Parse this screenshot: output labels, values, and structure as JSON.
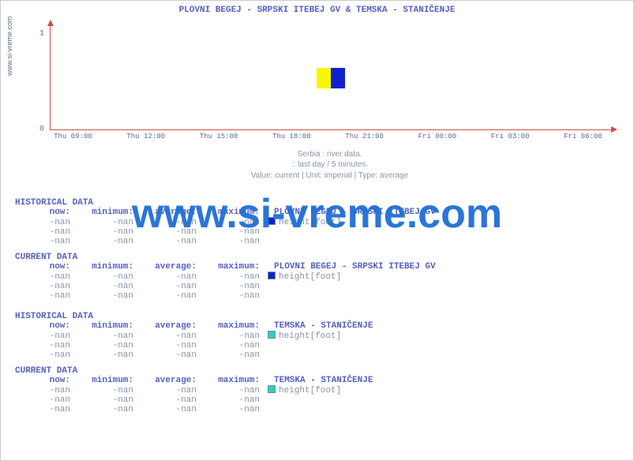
{
  "title": "PLOVNI BEGEJ -  SRPSKI ITEBEJ GV &  TEMSKA -  STANIČENJE",
  "side_link": "www.si-vreme.com",
  "watermark": {
    "text": "www.si-vreme.com",
    "color": "#1f6fd4",
    "fontsize": 52
  },
  "meta": {
    "line1": "Serbia : river data.",
    "line2": ":: last day / 5 minutes.",
    "line3": "Value: current | Unit: imperial | Type: average"
  },
  "chart": {
    "type": "line",
    "axis_color": "#d04a4a",
    "xlim_labels": [
      "Thu 09:00",
      "Thu 12:00",
      "Thu 15:00",
      "Thu 18:00",
      "Thu 21:00",
      "Fri 00:00",
      "Fri 03:00",
      "Fri 06:00"
    ],
    "ytick_labels": [
      "0",
      "1"
    ],
    "ytick_positions_pct": [
      100,
      8
    ],
    "xtick_positions_pct": [
      4,
      17,
      30,
      43,
      56,
      69,
      82,
      95
    ],
    "background_color": "#ffffff",
    "legend_colors": {
      "left": "#f7f700",
      "right": "#1020d0"
    }
  },
  "series": [
    {
      "name": "PLOVNI BEGEJ -  SRPSKI ITEBEJ GV",
      "swatch_hist": "#1020d0",
      "swatch_curr": "#1020d0",
      "unit": "height[foot]"
    },
    {
      "name": "TEMSKA -  STANIČENJE",
      "swatch_hist": "#2ad0c0",
      "swatch_curr": "#2ad0c0",
      "unit": "height[foot]"
    }
  ],
  "labels": {
    "historical": "HISTORICAL DATA",
    "current": "CURRENT DATA",
    "now": "now:",
    "min": "minimum:",
    "avg": "average:",
    "max": "maximum:"
  },
  "nan": "-nan"
}
